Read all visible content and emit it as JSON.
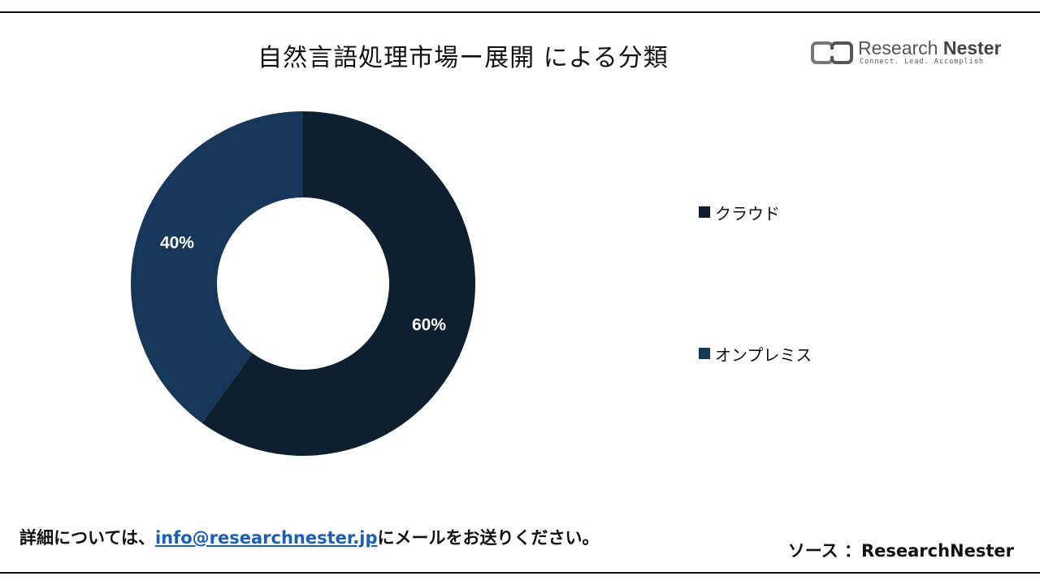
{
  "title": "自然言語処理市場ー展開 による分類",
  "logo": {
    "brand_light": "Research ",
    "brand_bold": "Nester",
    "tagline": "Connect. Lead. Accomplish"
  },
  "chart_data": {
    "type": "pie",
    "donut": true,
    "categories": [
      "クラウド",
      "オンプレミス"
    ],
    "values": [
      60,
      40
    ],
    "labels": [
      "60%",
      "40%"
    ],
    "colors": [
      "#0e1f30",
      "#16375a"
    ],
    "legend_position": "right"
  },
  "footer": {
    "contact_prefix": "詳細については、",
    "contact_email": "info@researchnester.jp",
    "contact_suffix": "にメールをお送りください。",
    "source": "ソース ：ResearchNester"
  }
}
